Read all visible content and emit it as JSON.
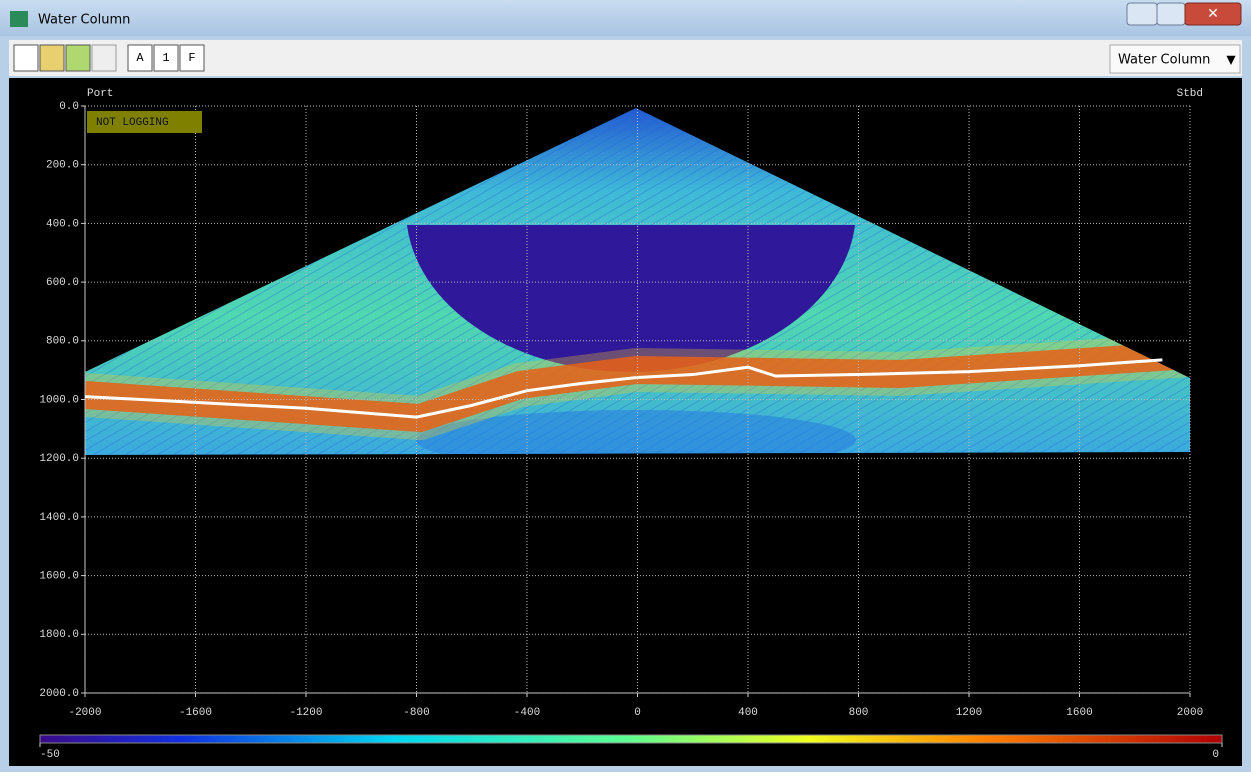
{
  "window": {
    "title": "Water Column"
  },
  "toolbar": {
    "labeled_buttons": [
      "A",
      "1",
      "F"
    ],
    "view_selector": "Water Column"
  },
  "plot": {
    "status": "NOT LOGGING",
    "port_label": "Port",
    "stbd_label": "Stbd",
    "xlim": [
      -2000,
      2000
    ],
    "xticks": [
      -2000,
      -1600,
      -1200,
      -800,
      -400,
      0,
      400,
      800,
      1200,
      1600,
      2000
    ],
    "ylim": [
      0,
      2000
    ],
    "y_inverted": true,
    "grid": true,
    "yticks": [
      {
        "value": 0,
        "label": "0.0"
      },
      {
        "value": 200,
        "label": "200.0"
      },
      {
        "value": 400,
        "label": "400.0"
      },
      {
        "value": 600,
        "label": "600.0"
      },
      {
        "value": 800,
        "label": "800.0"
      },
      {
        "value": 1000,
        "label": "1000.0"
      },
      {
        "value": 1200,
        "label": "1200.0"
      },
      {
        "value": 1400,
        "label": "1400.0"
      },
      {
        "value": 1600,
        "label": "1600.0"
      },
      {
        "value": 1800,
        "label": "1800.0"
      },
      {
        "value": 2000,
        "label": "2000.0"
      }
    ],
    "bottom_detect": {
      "color": "#ffffff",
      "x": [
        -2000,
        -1600,
        -1200,
        -800,
        -600,
        -400,
        -200,
        0,
        200,
        400,
        500,
        800,
        1200,
        1600,
        1900
      ],
      "y": [
        990,
        1010,
        1030,
        1060,
        1020,
        970,
        945,
        925,
        915,
        890,
        920,
        915,
        905,
        885,
        865
      ]
    }
  },
  "colorbar": {
    "lim": [
      -50,
      0
    ],
    "ticks": [
      -50,
      0
    ]
  }
}
